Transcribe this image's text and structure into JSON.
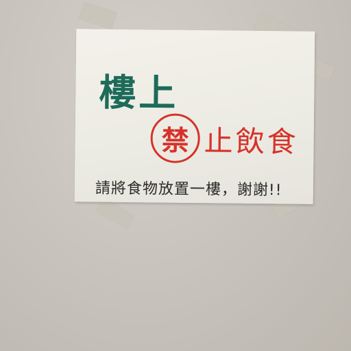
{
  "sign": {
    "title": "樓上",
    "stamp_char": "禁",
    "prohibition": "止飲食",
    "note": "請將食物放置一樓，謝謝!!"
  },
  "colors": {
    "title": "#1d6b5a",
    "prohibition": "#d6322a",
    "note": "#2a2a2a",
    "paper": "#f0eee6",
    "wall": "#c9c5be"
  }
}
